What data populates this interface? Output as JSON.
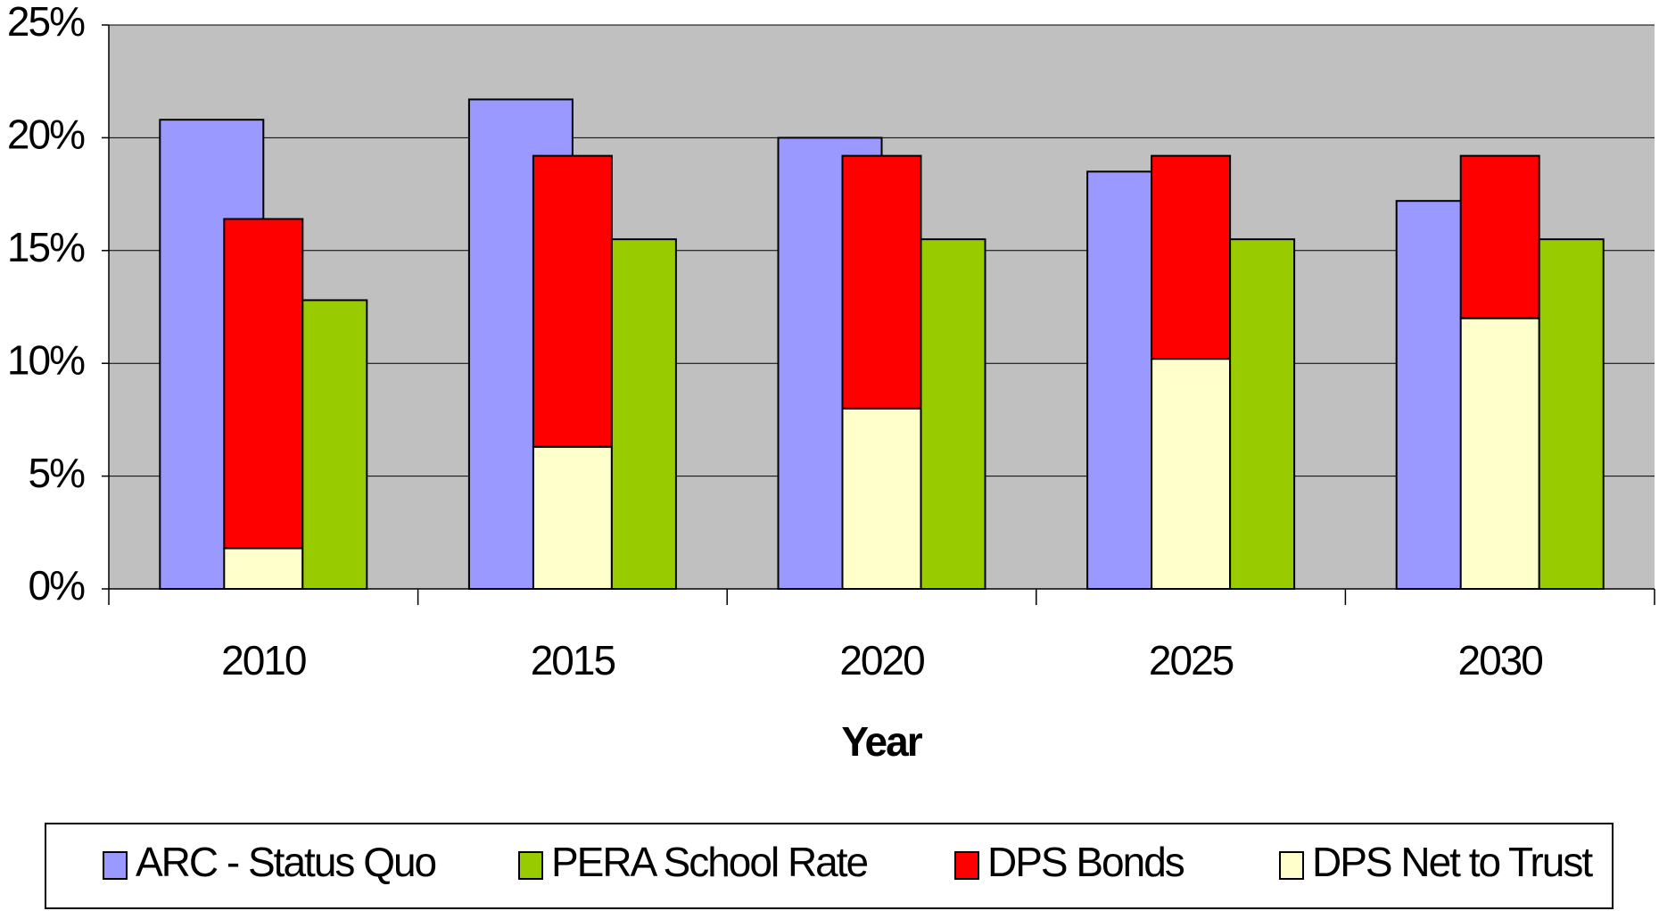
{
  "chart_data": {
    "type": "bar",
    "x_label": "Year",
    "categories": [
      "2010",
      "2015",
      "2020",
      "2025",
      "2030"
    ],
    "series": [
      {
        "name": "ARC - Status Quo",
        "color": "#9999ff",
        "values": [
          20.8,
          21.7,
          20.0,
          18.5,
          17.2
        ]
      },
      {
        "name": "PERA School Rate",
        "color": "#99cc00",
        "values": [
          12.8,
          15.5,
          15.5,
          15.5,
          15.5
        ]
      },
      {
        "name": "DPS Bonds",
        "color": "#ff0000",
        "values": [
          14.6,
          12.9,
          11.2,
          9.0,
          7.2
        ]
      },
      {
        "name": "DPS Net to Trust",
        "color": "#ffffcc",
        "values": [
          1.8,
          6.3,
          8.0,
          10.2,
          12.0
        ]
      }
    ],
    "ylim": [
      0,
      25
    ],
    "yticks": [
      {
        "value": 0,
        "label": "0%"
      },
      {
        "value": 5,
        "label": "5%"
      },
      {
        "value": 10,
        "label": "10%"
      },
      {
        "value": 15,
        "label": "15%"
      },
      {
        "value": 20,
        "label": "20%"
      },
      {
        "value": 25,
        "label": "25%"
      }
    ],
    "grid": true,
    "legend": "bottom"
  }
}
